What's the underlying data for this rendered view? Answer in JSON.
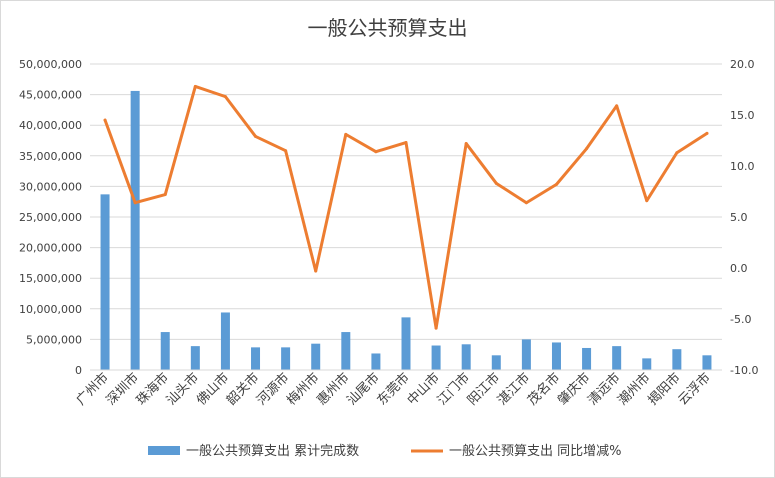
{
  "chart_data": {
    "type": "bar+line",
    "title": "一般公共预算支出",
    "categories": [
      "广州市",
      "深圳市",
      "珠海市",
      "汕头市",
      "佛山市",
      "韶关市",
      "河源市",
      "梅州市",
      "惠州市",
      "汕尾市",
      "东莞市",
      "中山市",
      "江门市",
      "阳江市",
      "湛江市",
      "茂名市",
      "肇庆市",
      "清远市",
      "潮州市",
      "揭阳市",
      "云浮市"
    ],
    "series": [
      {
        "name": "一般公共预算支出 累计完成数",
        "type": "bar",
        "axis": "left",
        "color": "#5b9bd5",
        "values": [
          28700000,
          45600000,
          6200000,
          3900000,
          9400000,
          3700000,
          3700000,
          4300000,
          6200000,
          2700000,
          8600000,
          4000000,
          4200000,
          2400000,
          5000000,
          4500000,
          3600000,
          3900000,
          1900000,
          3400000,
          2400000
        ]
      },
      {
        "name": "一般公共预算支出 同比增减%",
        "type": "line",
        "axis": "right",
        "color": "#ed7d31",
        "values": [
          14.5,
          6.4,
          7.2,
          17.8,
          16.8,
          12.9,
          11.5,
          -0.3,
          13.1,
          11.4,
          12.3,
          -5.9,
          12.2,
          8.3,
          6.4,
          8.2,
          11.7,
          15.9,
          6.6,
          11.3,
          13.2
        ]
      }
    ],
    "y_left": {
      "lim": [
        0,
        50000000
      ],
      "ticks": [
        0,
        5000000,
        10000000,
        15000000,
        20000000,
        25000000,
        30000000,
        35000000,
        40000000,
        45000000,
        50000000
      ],
      "tick_labels": [
        "0",
        "5,000,000",
        "10,000,000",
        "15,000,000",
        "20,000,000",
        "25,000,000",
        "30,000,000",
        "35,000,000",
        "40,000,000",
        "45,000,000",
        "50,000,000"
      ]
    },
    "y_right": {
      "lim": [
        -10,
        20
      ],
      "ticks": [
        -10,
        -5,
        0,
        5,
        10,
        15,
        20
      ],
      "tick_labels": [
        "-10.0",
        "-5.0",
        "0.0",
        "5.0",
        "10.0",
        "15.0",
        "20.0"
      ]
    },
    "grid": true,
    "legend_position": "bottom"
  },
  "legend": {
    "bar_label": "一般公共预算支出 累计完成数",
    "line_label": "一般公共预算支出 同比增减%"
  }
}
